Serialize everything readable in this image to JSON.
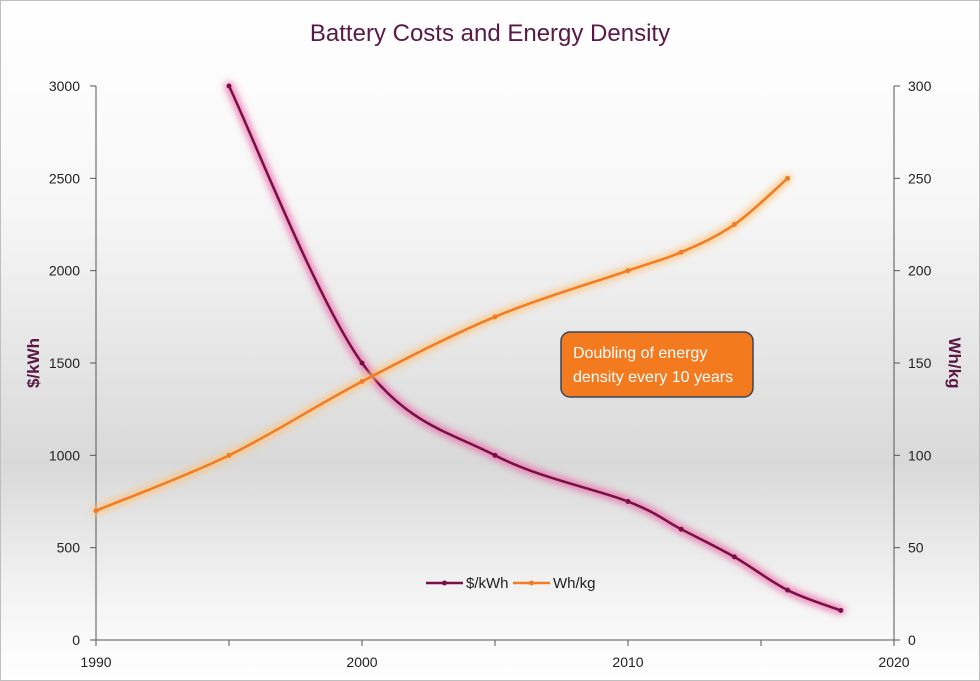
{
  "chart_data": {
    "type": "line",
    "title": "Battery Costs and Energy Density",
    "xlabel": "",
    "ylabel": "$/kWh",
    "y2label": "Wh/kg",
    "xlim": [
      1990,
      2020
    ],
    "ylim": [
      0,
      3000
    ],
    "y2lim": [
      0,
      300
    ],
    "xticks": [
      1990,
      2000,
      2010,
      2020
    ],
    "xminor": [
      1995,
      2005,
      2015
    ],
    "yticks": [
      0,
      500,
      1000,
      1500,
      2000,
      2500,
      3000
    ],
    "y2ticks": [
      0,
      50,
      100,
      150,
      200,
      250,
      300
    ],
    "series": [
      {
        "name": "$/kWh",
        "axis": "left",
        "color": "#7a0f45",
        "glow": "#e96aa8",
        "x": [
          1995,
          2000,
          2005,
          2010,
          2012,
          2014,
          2016,
          2018
        ],
        "y": [
          3000,
          1500,
          1000,
          750,
          600,
          450,
          270,
          160
        ]
      },
      {
        "name": "Wh/kg",
        "axis": "right",
        "color": "#f07d23",
        "glow": "#ffc37a",
        "x": [
          1990,
          1995,
          2000,
          2005,
          2010,
          2012,
          2014,
          2016
        ],
        "y": [
          70,
          100,
          140,
          175,
          200,
          210,
          225,
          250
        ]
      }
    ],
    "annotation": {
      "text": "Doubling of energy density every 10 years",
      "lines": [
        "Doubling of energy",
        "density every 10 years"
      ],
      "color": "#f47a20",
      "border": "#35465e"
    },
    "legend": {
      "position": "bottom-center"
    }
  }
}
